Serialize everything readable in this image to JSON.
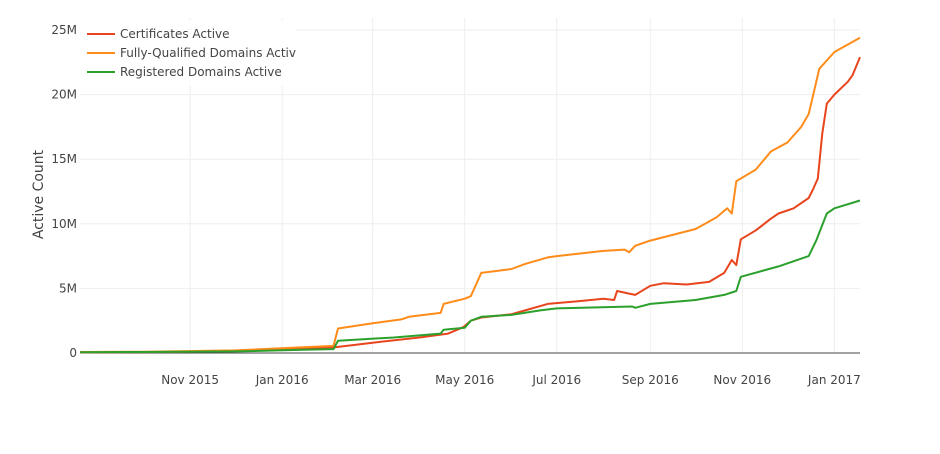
{
  "chart_data": {
    "type": "line",
    "title": "",
    "xlabel": "",
    "ylabel": "Active Count",
    "x_type": "date",
    "xlim": [
      "2015-08-20",
      "2017-01-18"
    ],
    "ylim": [
      0,
      25000000
    ],
    "grid": true,
    "legend_position": "top-left",
    "x_ticks": [
      {
        "value": "2015-11-01",
        "label": "Nov 2015"
      },
      {
        "value": "2016-01-01",
        "label": "Jan 2016"
      },
      {
        "value": "2016-03-01",
        "label": "Mar 2016"
      },
      {
        "value": "2016-05-01",
        "label": "May 2016"
      },
      {
        "value": "2016-07-01",
        "label": "Jul 2016"
      },
      {
        "value": "2016-09-01",
        "label": "Sep 2016"
      },
      {
        "value": "2016-11-01",
        "label": "Nov 2016"
      },
      {
        "value": "2017-01-01",
        "label": "Jan 2017"
      }
    ],
    "y_ticks": [
      {
        "value": 0,
        "label": "0"
      },
      {
        "value": 5000000,
        "label": "5M"
      },
      {
        "value": 10000000,
        "label": "10M"
      },
      {
        "value": 15000000,
        "label": "15M"
      },
      {
        "value": 20000000,
        "label": "20M"
      },
      {
        "value": 25000000,
        "label": "25M"
      }
    ],
    "series": [
      {
        "name": "Certificates Active",
        "color": "#e8451e",
        "points": [
          [
            "2015-08-20",
            50000
          ],
          [
            "2015-10-01",
            70000
          ],
          [
            "2015-12-01",
            150000
          ],
          [
            "2016-01-15",
            350000
          ],
          [
            "2016-02-05",
            450000
          ],
          [
            "2016-03-01",
            800000
          ],
          [
            "2016-04-01",
            1200000
          ],
          [
            "2016-04-20",
            1500000
          ],
          [
            "2016-04-30",
            2000000
          ],
          [
            "2016-05-05",
            2500000
          ],
          [
            "2016-05-12",
            2750000
          ],
          [
            "2016-06-01",
            3000000
          ],
          [
            "2016-06-10",
            3300000
          ],
          [
            "2016-06-25",
            3800000
          ],
          [
            "2016-07-15",
            4000000
          ],
          [
            "2016-08-01",
            4200000
          ],
          [
            "2016-08-08",
            4100000
          ],
          [
            "2016-08-10",
            4800000
          ],
          [
            "2016-08-18",
            4600000
          ],
          [
            "2016-08-22",
            4500000
          ],
          [
            "2016-09-01",
            5200000
          ],
          [
            "2016-09-10",
            5400000
          ],
          [
            "2016-09-25",
            5300000
          ],
          [
            "2016-10-10",
            5500000
          ],
          [
            "2016-10-20",
            6200000
          ],
          [
            "2016-10-25",
            7200000
          ],
          [
            "2016-10-28",
            6800000
          ],
          [
            "2016-10-31",
            8800000
          ],
          [
            "2016-11-10",
            9500000
          ],
          [
            "2016-11-20",
            10400000
          ],
          [
            "2016-11-25",
            10800000
          ],
          [
            "2016-12-05",
            11200000
          ],
          [
            "2016-12-15",
            12000000
          ],
          [
            "2016-12-18",
            12700000
          ],
          [
            "2016-12-21",
            13500000
          ],
          [
            "2016-12-24",
            17000000
          ],
          [
            "2016-12-27",
            19300000
          ],
          [
            "2017-01-01",
            20000000
          ],
          [
            "2017-01-10",
            21000000
          ],
          [
            "2017-01-13",
            21500000
          ],
          [
            "2017-01-18",
            22900000
          ]
        ]
      },
      {
        "name": "Fully-Qualified Domains Active",
        "color": "#ff8c1a",
        "points": [
          [
            "2015-08-20",
            80000
          ],
          [
            "2015-10-01",
            100000
          ],
          [
            "2015-12-01",
            200000
          ],
          [
            "2016-01-15",
            450000
          ],
          [
            "2016-02-04",
            550000
          ],
          [
            "2016-02-07",
            1900000
          ],
          [
            "2016-03-01",
            2300000
          ],
          [
            "2016-03-20",
            2600000
          ],
          [
            "2016-03-25",
            2800000
          ],
          [
            "2016-04-15",
            3100000
          ],
          [
            "2016-04-17",
            3800000
          ],
          [
            "2016-05-01",
            4200000
          ],
          [
            "2016-05-05",
            4400000
          ],
          [
            "2016-05-12",
            6200000
          ],
          [
            "2016-06-01",
            6500000
          ],
          [
            "2016-06-10",
            6900000
          ],
          [
            "2016-06-25",
            7400000
          ],
          [
            "2016-07-01",
            7500000
          ],
          [
            "2016-08-01",
            7900000
          ],
          [
            "2016-08-15",
            8000000
          ],
          [
            "2016-08-18",
            7800000
          ],
          [
            "2016-08-22",
            8300000
          ],
          [
            "2016-09-01",
            8700000
          ],
          [
            "2016-10-01",
            9600000
          ],
          [
            "2016-10-15",
            10500000
          ],
          [
            "2016-10-22",
            11200000
          ],
          [
            "2016-10-25",
            10800000
          ],
          [
            "2016-10-28",
            13300000
          ],
          [
            "2016-11-10",
            14200000
          ],
          [
            "2016-11-20",
            15600000
          ],
          [
            "2016-12-01",
            16300000
          ],
          [
            "2016-12-10",
            17500000
          ],
          [
            "2016-12-15",
            18500000
          ],
          [
            "2016-12-22",
            22000000
          ],
          [
            "2017-01-01",
            23300000
          ],
          [
            "2017-01-18",
            24400000
          ]
        ]
      },
      {
        "name": "Registered Domains Active",
        "color": "#2ca02c",
        "points": [
          [
            "2015-08-20",
            60000
          ],
          [
            "2015-10-01",
            80000
          ],
          [
            "2015-12-01",
            120000
          ],
          [
            "2016-01-15",
            250000
          ],
          [
            "2016-02-04",
            300000
          ],
          [
            "2016-02-07",
            950000
          ],
          [
            "2016-03-15",
            1200000
          ],
          [
            "2016-04-15",
            1500000
          ],
          [
            "2016-04-17",
            1800000
          ],
          [
            "2016-05-01",
            1950000
          ],
          [
            "2016-05-05",
            2500000
          ],
          [
            "2016-05-12",
            2800000
          ],
          [
            "2016-06-01",
            2950000
          ],
          [
            "2016-06-20",
            3300000
          ],
          [
            "2016-07-01",
            3450000
          ],
          [
            "2016-08-20",
            3600000
          ],
          [
            "2016-08-22",
            3500000
          ],
          [
            "2016-09-01",
            3800000
          ],
          [
            "2016-10-01",
            4100000
          ],
          [
            "2016-10-20",
            4500000
          ],
          [
            "2016-10-28",
            4800000
          ],
          [
            "2016-10-31",
            5900000
          ],
          [
            "2016-11-25",
            6700000
          ],
          [
            "2016-12-15",
            7500000
          ],
          [
            "2016-12-20",
            8700000
          ],
          [
            "2016-12-27",
            10800000
          ],
          [
            "2017-01-01",
            11200000
          ],
          [
            "2017-01-18",
            11800000
          ]
        ]
      }
    ]
  }
}
